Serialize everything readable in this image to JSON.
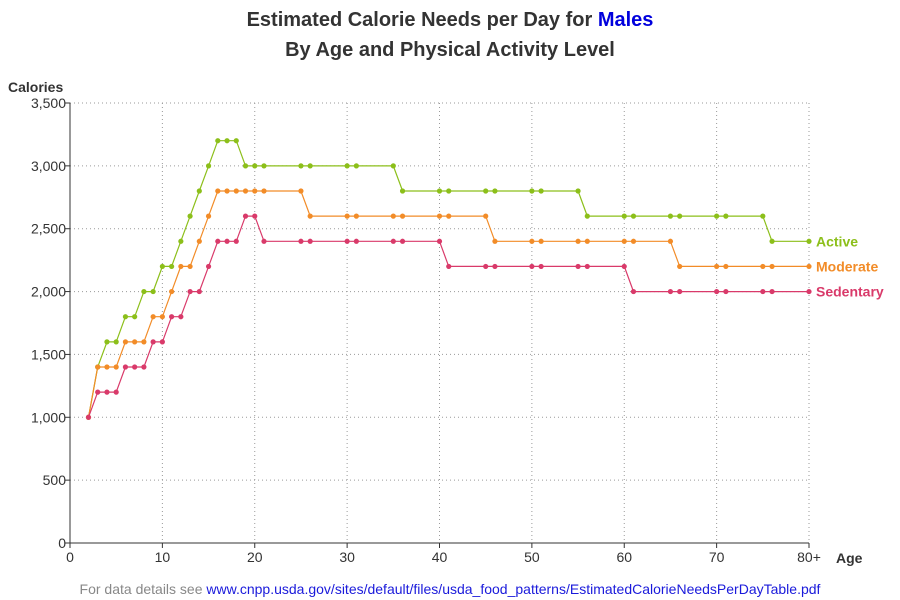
{
  "header": {
    "title_prefix": "Estimated Calorie Needs per Day for ",
    "title_highlight": "Males",
    "subtitle": "By Age and Physical Activity Level"
  },
  "footer": {
    "note_prefix": "For data details see ",
    "link_text": "www.cnpp.usda.gov/sites/default/files/usda_food_patterns/EstimatedCalorieNeedsPerDayTable.pdf"
  },
  "chart_data": {
    "type": "line",
    "title": "Estimated Calorie Needs per Day for Males",
    "subtitle": "By Age and Physical Activity Level",
    "xlabel": "Age",
    "ylabel": "Calories",
    "xlim": [
      0,
      80
    ],
    "ylim": [
      0,
      3500
    ],
    "x_ticks": [
      0,
      10,
      20,
      30,
      40,
      50,
      60,
      70,
      80
    ],
    "x_tick_labels": [
      "0",
      "10",
      "20",
      "30",
      "40",
      "50",
      "60",
      "70",
      "80+"
    ],
    "y_ticks": [
      0,
      500,
      1000,
      1500,
      2000,
      2500,
      3000,
      3500
    ],
    "y_tick_labels": [
      "0",
      "500",
      "1,000",
      "1,500",
      "2,000",
      "2,500",
      "3,000",
      "3,500"
    ],
    "grid": true,
    "legend": "end-of-line labels",
    "series": [
      {
        "name": "Active",
        "color": "#8cbf1a",
        "points": [
          [
            2,
            1000
          ],
          [
            3,
            1400
          ],
          [
            4,
            1600
          ],
          [
            5,
            1600
          ],
          [
            6,
            1800
          ],
          [
            7,
            1800
          ],
          [
            8,
            2000
          ],
          [
            9,
            2000
          ],
          [
            10,
            2200
          ],
          [
            11,
            2200
          ],
          [
            12,
            2400
          ],
          [
            13,
            2600
          ],
          [
            14,
            2800
          ],
          [
            15,
            3000
          ],
          [
            16,
            3200
          ],
          [
            17,
            3200
          ],
          [
            18,
            3200
          ],
          [
            19,
            3000
          ],
          [
            20,
            3000
          ],
          [
            21,
            3000
          ],
          [
            25,
            3000
          ],
          [
            26,
            3000
          ],
          [
            30,
            3000
          ],
          [
            31,
            3000
          ],
          [
            35,
            3000
          ],
          [
            36,
            2800
          ],
          [
            40,
            2800
          ],
          [
            41,
            2800
          ],
          [
            45,
            2800
          ],
          [
            46,
            2800
          ],
          [
            50,
            2800
          ],
          [
            51,
            2800
          ],
          [
            55,
            2800
          ],
          [
            56,
            2600
          ],
          [
            60,
            2600
          ],
          [
            61,
            2600
          ],
          [
            65,
            2600
          ],
          [
            66,
            2600
          ],
          [
            70,
            2600
          ],
          [
            71,
            2600
          ],
          [
            75,
            2600
          ],
          [
            76,
            2400
          ],
          [
            80,
            2400
          ]
        ]
      },
      {
        "name": "Moderate",
        "color": "#f28c28",
        "points": [
          [
            2,
            1000
          ],
          [
            3,
            1400
          ],
          [
            4,
            1400
          ],
          [
            5,
            1400
          ],
          [
            6,
            1600
          ],
          [
            7,
            1600
          ],
          [
            8,
            1600
          ],
          [
            9,
            1800
          ],
          [
            10,
            1800
          ],
          [
            11,
            2000
          ],
          [
            12,
            2200
          ],
          [
            13,
            2200
          ],
          [
            14,
            2400
          ],
          [
            15,
            2600
          ],
          [
            16,
            2800
          ],
          [
            17,
            2800
          ],
          [
            18,
            2800
          ],
          [
            19,
            2800
          ],
          [
            20,
            2800
          ],
          [
            21,
            2800
          ],
          [
            25,
            2800
          ],
          [
            26,
            2600
          ],
          [
            30,
            2600
          ],
          [
            31,
            2600
          ],
          [
            35,
            2600
          ],
          [
            36,
            2600
          ],
          [
            40,
            2600
          ],
          [
            41,
            2600
          ],
          [
            45,
            2600
          ],
          [
            46,
            2400
          ],
          [
            50,
            2400
          ],
          [
            51,
            2400
          ],
          [
            55,
            2400
          ],
          [
            56,
            2400
          ],
          [
            60,
            2400
          ],
          [
            61,
            2400
          ],
          [
            65,
            2400
          ],
          [
            66,
            2200
          ],
          [
            70,
            2200
          ],
          [
            71,
            2200
          ],
          [
            75,
            2200
          ],
          [
            76,
            2200
          ],
          [
            80,
            2200
          ]
        ]
      },
      {
        "name": "Sedentary",
        "color": "#d93a6a",
        "points": [
          [
            2,
            1000
          ],
          [
            3,
            1200
          ],
          [
            4,
            1200
          ],
          [
            5,
            1200
          ],
          [
            6,
            1400
          ],
          [
            7,
            1400
          ],
          [
            8,
            1400
          ],
          [
            9,
            1600
          ],
          [
            10,
            1600
          ],
          [
            11,
            1800
          ],
          [
            12,
            1800
          ],
          [
            13,
            2000
          ],
          [
            14,
            2000
          ],
          [
            15,
            2200
          ],
          [
            16,
            2400
          ],
          [
            17,
            2400
          ],
          [
            18,
            2400
          ],
          [
            19,
            2600
          ],
          [
            20,
            2600
          ],
          [
            21,
            2400
          ],
          [
            25,
            2400
          ],
          [
            26,
            2400
          ],
          [
            30,
            2400
          ],
          [
            31,
            2400
          ],
          [
            35,
            2400
          ],
          [
            36,
            2400
          ],
          [
            40,
            2400
          ],
          [
            41,
            2200
          ],
          [
            45,
            2200
          ],
          [
            46,
            2200
          ],
          [
            50,
            2200
          ],
          [
            51,
            2200
          ],
          [
            55,
            2200
          ],
          [
            56,
            2200
          ],
          [
            60,
            2200
          ],
          [
            61,
            2000
          ],
          [
            65,
            2000
          ],
          [
            66,
            2000
          ],
          [
            70,
            2000
          ],
          [
            71,
            2000
          ],
          [
            75,
            2000
          ],
          [
            76,
            2000
          ],
          [
            80,
            2000
          ]
        ]
      }
    ]
  }
}
